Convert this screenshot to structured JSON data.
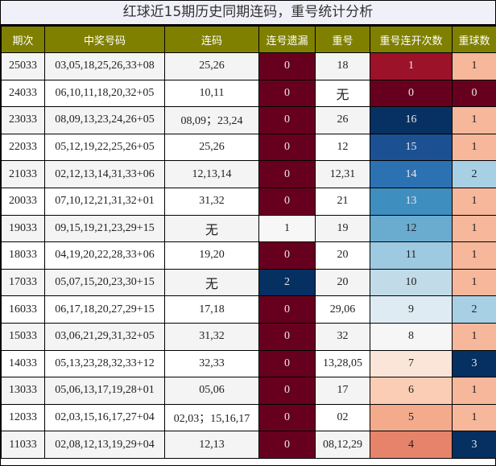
{
  "title": "红球近15期历史同期连码，重号统计分析",
  "headers": [
    "期次",
    "中奖号码",
    "连码",
    "连号遗漏",
    "重号",
    "重号连开次数",
    "重球数"
  ],
  "rows": [
    {
      "period": "25033",
      "numbers": "03,05,18,25,26,33+08",
      "consecutive": "25,26",
      "consec_miss": "0",
      "repeat": "18",
      "repeat_streak": "1",
      "repeat_count": "1"
    },
    {
      "period": "24033",
      "numbers": "06,10,11,18,20,32+05",
      "consecutive": "10,11",
      "consec_miss": "0",
      "repeat": "无",
      "repeat_streak": "0",
      "repeat_count": "0"
    },
    {
      "period": "23033",
      "numbers": "08,09,13,23,24,26+05",
      "consecutive": "08,09；23,24",
      "consec_miss": "0",
      "repeat": "26",
      "repeat_streak": "16",
      "repeat_count": "1"
    },
    {
      "period": "22033",
      "numbers": "05,12,19,22,25,26+05",
      "consecutive": "25,26",
      "consec_miss": "0",
      "repeat": "12",
      "repeat_streak": "15",
      "repeat_count": "1"
    },
    {
      "period": "21033",
      "numbers": "02,12,13,14,31,33+06",
      "consecutive": "12,13,14",
      "consec_miss": "0",
      "repeat": "12,31",
      "repeat_streak": "14",
      "repeat_count": "2"
    },
    {
      "period": "20033",
      "numbers": "07,10,12,21,31,32+01",
      "consecutive": "31,32",
      "consec_miss": "0",
      "repeat": "21",
      "repeat_streak": "13",
      "repeat_count": "1"
    },
    {
      "period": "19033",
      "numbers": "09,15,19,21,23,29+15",
      "consecutive": "无",
      "consec_miss": "1",
      "repeat": "19",
      "repeat_streak": "12",
      "repeat_count": "1"
    },
    {
      "period": "18033",
      "numbers": "04,19,20,22,28,33+06",
      "consecutive": "19,20",
      "consec_miss": "0",
      "repeat": "20",
      "repeat_streak": "11",
      "repeat_count": "1"
    },
    {
      "period": "17033",
      "numbers": "05,07,15,20,23,30+15",
      "consecutive": "无",
      "consec_miss": "2",
      "repeat": "20",
      "repeat_streak": "10",
      "repeat_count": "1"
    },
    {
      "period": "16033",
      "numbers": "06,17,18,20,27,29+15",
      "consecutive": "17,18",
      "consec_miss": "0",
      "repeat": "29,06",
      "repeat_streak": "9",
      "repeat_count": "2"
    },
    {
      "period": "15033",
      "numbers": "03,06,21,29,31,32+05",
      "consecutive": "31,32",
      "consec_miss": "0",
      "repeat": "32",
      "repeat_streak": "8",
      "repeat_count": "1"
    },
    {
      "period": "14033",
      "numbers": "05,13,23,28,32,33+12",
      "consecutive": "32,33",
      "consec_miss": "0",
      "repeat": "13,28,05",
      "repeat_streak": "7",
      "repeat_count": "3"
    },
    {
      "period": "13033",
      "numbers": "05,06,13,17,19,28+01",
      "consecutive": "05,06",
      "consec_miss": "0",
      "repeat": "17",
      "repeat_streak": "6",
      "repeat_count": "1"
    },
    {
      "period": "12033",
      "numbers": "02,03,15,16,17,27+04",
      "consecutive": "02,03；15,16,17",
      "consec_miss": "0",
      "repeat": "02",
      "repeat_streak": "5",
      "repeat_count": "1"
    },
    {
      "period": "11033",
      "numbers": "02,08,12,13,19,29+04",
      "consecutive": "12,13",
      "consec_miss": "0",
      "repeat": "08,12,29",
      "repeat_streak": "4",
      "repeat_count": "3"
    }
  ],
  "colors": {
    "header_bg": "#808000",
    "title_bg": "#f0f0f8",
    "miss": {
      "0": "#67001f",
      "1": "#f7f7f7",
      "2": "#053061"
    },
    "streak": {
      "0": "#67001f",
      "1": "#9b1229",
      "4": "#e6846b",
      "5": "#f4ab8b",
      "6": "#fbcdb4",
      "7": "#fbe5d9",
      "8": "#f6f6f6",
      "9": "#dfebf3",
      "10": "#c1dbe9",
      "11": "#9dcae1",
      "12": "#6aacd0",
      "13": "#3f8ec0",
      "14": "#2c71b2",
      "15": "#1b5192",
      "16": "#073163"
    },
    "count": {
      "0": "#67001f",
      "1": "#f6b79b",
      "2": "#a8d0e4",
      "3": "#053061"
    }
  },
  "chart_data": {
    "type": "table",
    "title": "红球近15期历史同期连码，重号统计分析",
    "columns": [
      "期次",
      "中奖号码",
      "连码",
      "连号遗漏",
      "重号",
      "重号连开次数",
      "重球数"
    ],
    "categories": [
      "25033",
      "24033",
      "23033",
      "22033",
      "21033",
      "20033",
      "19033",
      "18033",
      "17033",
      "16033",
      "15033",
      "14033",
      "13033",
      "12033",
      "11033"
    ],
    "series": [
      {
        "name": "连号遗漏",
        "values": [
          0,
          0,
          0,
          0,
          0,
          0,
          1,
          0,
          2,
          0,
          0,
          0,
          0,
          0,
          0
        ]
      },
      {
        "name": "重号连开次数",
        "values": [
          1,
          0,
          16,
          15,
          14,
          13,
          12,
          11,
          10,
          9,
          8,
          7,
          6,
          5,
          4
        ]
      },
      {
        "name": "重球数",
        "values": [
          1,
          0,
          1,
          1,
          2,
          1,
          1,
          1,
          1,
          2,
          1,
          3,
          1,
          1,
          3
        ]
      }
    ]
  }
}
